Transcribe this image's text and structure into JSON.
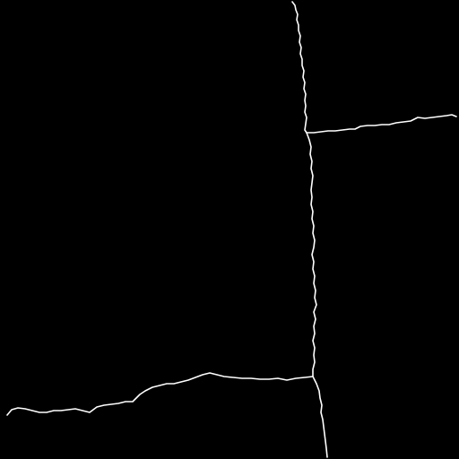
{
  "image": {
    "background_color": "#000000",
    "line_color": "#ffffff",
    "description_kind": "binary boundary map"
  },
  "boundaries": [
    {
      "id": "vertical-upper"
    },
    {
      "id": "horizontal-upper-right"
    },
    {
      "id": "vertical-middle"
    },
    {
      "id": "horizontal-lower-left"
    },
    {
      "id": "vertical-lower"
    }
  ]
}
